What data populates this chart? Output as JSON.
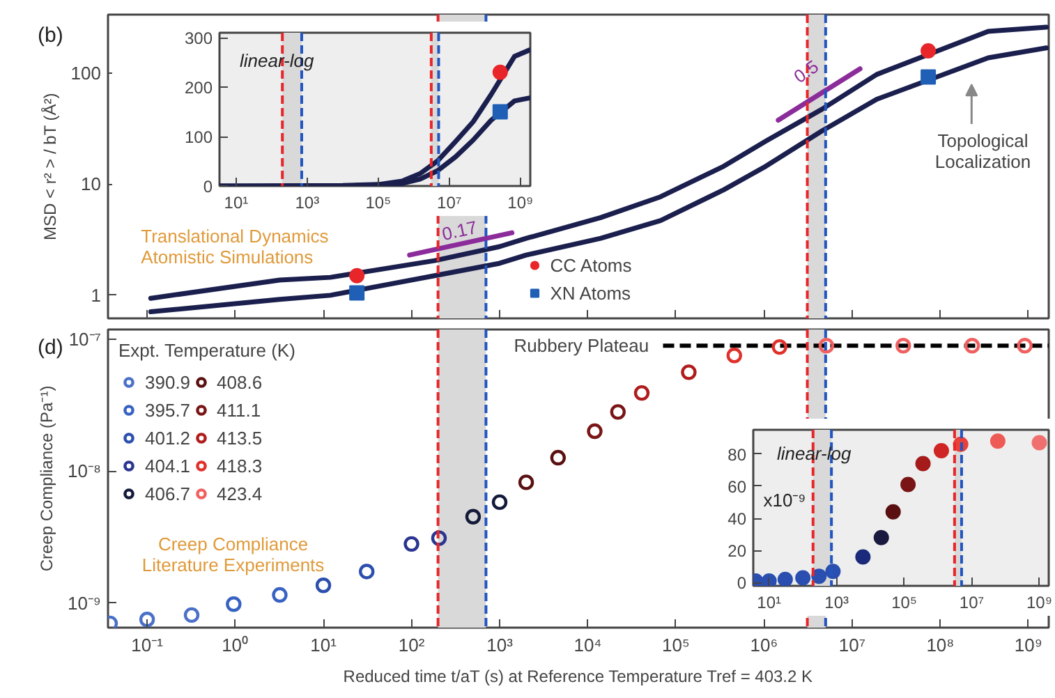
{
  "chart_data": [
    {
      "type": "line",
      "ylabel": "MSD < r² > / bT (Å²)",
      "xlim": [
        0.036,
        1700000000.0
      ],
      "ylim": [
        0.62,
        335
      ],
      "log": "xy",
      "grid": false,
      "tick_labels": "y",
      "legend": "bottom",
      "xticks": [
        {
          "value": 0.1,
          "label": null
        },
        {
          "value": 1,
          "label": null
        },
        {
          "value": 10,
          "label": null
        },
        {
          "value": 100,
          "label": null
        },
        {
          "value": 1000,
          "label": null
        },
        {
          "value": 10000.0,
          "label": null
        },
        {
          "value": 100000.0,
          "label": null
        },
        {
          "value": 1000000.0,
          "label": null
        },
        {
          "value": 10000000.0,
          "label": null
        },
        {
          "value": 100000000.0,
          "label": null
        },
        {
          "value": 1000000000.0,
          "label": null
        }
      ],
      "yticks": [
        1,
        10,
        100
      ],
      "series": [
        {
          "color": "#1b1f4e",
          "x": [
            0.11,
            3.2,
            12,
            183,
            1000,
            2000,
            14000.0,
            67000.0,
            350000.0,
            1050000.0,
            4500000.0,
            19000000.0,
            350000000.0,
            1600000000.0
          ],
          "values": [
            0.94,
            1.37,
            1.45,
            2.05,
            2.74,
            3.25,
            5.0,
            7.7,
            14.5,
            24.4,
            47,
            97,
            237,
            258
          ]
        },
        {
          "color": "#1b1f4e",
          "x": [
            0.11,
            3.2,
            12,
            183,
            1000,
            2000,
            14000.0,
            67000.0,
            350000.0,
            1050000.0,
            4500000.0,
            19000000.0,
            350000000.0,
            1600000000.0
          ],
          "values": [
            0.71,
            0.92,
            1.0,
            1.5,
            1.94,
            2.3,
            3.25,
            4.7,
            8.9,
            14.5,
            30,
            58,
            137,
            168
          ]
        },
        {
          "type": "scatter",
          "name": "CC Atoms",
          "marker": "circle",
          "color": "#e8262a",
          "x": [
            24,
            73000000.0
          ],
          "values": [
            1.5,
            158
          ]
        },
        {
          "type": "scatter",
          "name": "XN Atoms",
          "marker": "square",
          "color": "#1f5fb5",
          "x": [
            24,
            73000000.0
          ],
          "values": [
            1.05,
            92
          ]
        },
        {
          "color": "#8b2c9a",
          "x": [
            95,
            1380
          ],
          "values": [
            2.3,
            3.65
          ]
        },
        {
          "color": "#8b2c9a",
          "x": [
            1450000.0,
            12300000.0
          ],
          "values": [
            37.6,
            109
          ]
        }
      ],
      "ref_lines": [
        {
          "axis": "x",
          "value": 200,
          "color": "#e8262a",
          "line_style": "dashed"
        },
        {
          "axis": "x",
          "value": 700,
          "color": "#2255c0",
          "line_style": "dashed"
        },
        {
          "axis": "x",
          "value": 3100000.0,
          "color": "#e8262a",
          "line_style": "dashed"
        },
        {
          "axis": "x",
          "value": 5000000.0,
          "color": "#2255c0",
          "line_style": "dashed"
        }
      ],
      "bands": [
        {
          "axis": "x",
          "from": 200,
          "to": 700,
          "color": "#d9d9d9"
        },
        {
          "axis": "x",
          "from": 3100000.0,
          "to": 5000000.0,
          "color": "#d9d9d9"
        }
      ],
      "annotations": [
        "(b)",
        "Translational Dynamics\nAtomistic Simulations",
        {
          "text": "0.17",
          "x": 350,
          "y": 2.7
        },
        {
          "text": "0.5",
          "x": 3000000.0,
          "y": 73
        },
        "Topological\nLocalization"
      ]
    },
    {
      "type": "line",
      "xlim": [
        3.4,
        1900000000.0
      ],
      "ylim": [
        0,
        310
      ],
      "log": "x",
      "grid": false,
      "xticks": [
        {
          "value": 10,
          "label": "10¹"
        },
        {
          "value": 1000,
          "label": "10³"
        },
        {
          "value": 100000.0,
          "label": "10⁵"
        },
        {
          "value": 10000000.0,
          "label": "10⁷"
        },
        {
          "value": 1000000000.0,
          "label": "10⁹"
        }
      ],
      "yticks": [
        0,
        100,
        200,
        300
      ],
      "series": [
        {
          "color": "#1b1f4e",
          "x": [
            3.5,
            10,
            10000.0,
            100000.0,
            470000.0,
            1500000.0,
            4700000.0,
            15000000.0,
            47000000.0,
            150000000.0,
            680000000.0,
            1800000000.0
          ],
          "values": [
            0,
            0,
            1,
            3,
            10,
            25,
            51,
            90,
            130,
            185,
            262,
            275
          ]
        },
        {
          "color": "#1b1f4e",
          "x": [
            3.5,
            10,
            10000.0,
            100000.0,
            470000.0,
            1500000.0,
            4700000.0,
            15000000.0,
            47000000.0,
            150000000.0,
            680000000.0,
            1800000000.0
          ],
          "values": [
            0,
            0,
            0,
            2,
            5,
            14,
            31,
            59,
            93,
            133,
            172,
            178
          ]
        },
        {
          "type": "scatter",
          "marker": "circle",
          "color": "#e8262a",
          "x": [
            270000000.0
          ],
          "values": [
            230
          ]
        },
        {
          "type": "scatter",
          "marker": "square",
          "color": "#1f5fb5",
          "x": [
            270000000.0
          ],
          "values": [
            150
          ]
        }
      ],
      "ref_lines": [
        {
          "axis": "x",
          "value": 200,
          "color": "#e8262a",
          "line_style": "dashed"
        },
        {
          "axis": "x",
          "value": 700,
          "color": "#2255c0",
          "line_style": "dashed"
        },
        {
          "axis": "x",
          "value": 3100000.0,
          "color": "#e8262a",
          "line_style": "dashed"
        },
        {
          "axis": "x",
          "value": 5000000.0,
          "color": "#2255c0",
          "line_style": "dashed"
        }
      ],
      "bands": [
        {
          "axis": "x",
          "from": 200,
          "to": 700,
          "color": "#d9d9d9"
        },
        {
          "axis": "x",
          "from": 3100000.0,
          "to": 5000000.0,
          "color": "#d9d9d9"
        }
      ],
      "annotations": [
        "linear-log"
      ]
    },
    {
      "type": "scatter",
      "xlabel": "Reduced time t/aT (s) at Reference Temperature Tref = 403.2 K",
      "ylabel": "Creep Compliance (Pa⁻¹)",
      "xlim": [
        0.036,
        1700000000.0
      ],
      "ylim": [
        6.5e-10,
        1.18e-07
      ],
      "log": "xy",
      "grid": false,
      "legend": "top left",
      "legend_title": "Expt. Temperature (K)",
      "marker": "circle",
      "xticks": [
        {
          "value": 0.1,
          "label": "10⁻¹"
        },
        {
          "value": 1,
          "label": "10⁰"
        },
        {
          "value": 10,
          "label": "10¹"
        },
        {
          "value": 100,
          "label": "10²"
        },
        {
          "value": 1000,
          "label": "10³"
        },
        {
          "value": 10000.0,
          "label": "10⁴"
        },
        {
          "value": 100000.0,
          "label": "10⁵"
        },
        {
          "value": 1000000.0,
          "label": "10⁶"
        },
        {
          "value": 10000000.0,
          "label": "10⁷"
        },
        {
          "value": 100000000.0,
          "label": "10⁸"
        },
        {
          "value": 1000000000.0,
          "label": "10⁹"
        }
      ],
      "yticks": [
        {
          "value": 1e-09,
          "label": "10⁻⁹"
        },
        {
          "value": 1e-08,
          "label": "10⁻⁸"
        },
        {
          "value": 1e-07,
          "label": "10⁻⁷"
        }
      ],
      "series": [
        {
          "name": "390.9",
          "color": "#4a70c8",
          "x": [
            0.038,
            0.1,
            0.32
          ],
          "values": [
            7e-10,
            7.5e-10,
            8.1e-10
          ]
        },
        {
          "name": "395.7",
          "color": "#3862c2",
          "x": [
            0.96,
            3.2
          ],
          "values": [
            9.8e-10,
            1.15e-09
          ]
        },
        {
          "name": "401.2",
          "color": "#2c4fae",
          "x": [
            10,
            31
          ],
          "values": [
            1.36e-09,
            1.73e-09
          ]
        },
        {
          "name": "404.1",
          "color": "#2a3590",
          "x": [
            100,
            205
          ],
          "values": [
            2.8e-09,
            3.1e-09
          ]
        },
        {
          "name": "406.7",
          "color": "#141a3a",
          "x": [
            500,
            1000
          ],
          "values": [
            4.5e-09,
            5.8e-09
          ]
        },
        {
          "name": "408.6",
          "color": "#5a1010",
          "x": [
            2000,
            4600
          ],
          "values": [
            8.2e-09,
            1.26e-08
          ]
        },
        {
          "name": "411.1",
          "color": "#7a1515",
          "x": [
            12000.0,
            22000.0
          ],
          "values": [
            2e-08,
            2.8e-08
          ]
        },
        {
          "name": "413.5",
          "color": "#b01c1c",
          "x": [
            41000.0,
            140000.0
          ],
          "values": [
            3.9e-08,
            5.6e-08
          ]
        },
        {
          "name": "418.3",
          "color": "#e0302a",
          "x": [
            460000.0,
            1500000.0
          ],
          "values": [
            7.5e-08,
            8.7e-08
          ]
        },
        {
          "name": "423.4",
          "color": "#f06060",
          "x": [
            5100000.0,
            38000000.0,
            230000000.0,
            910000000.0
          ],
          "values": [
            8.9e-08,
            8.9e-08,
            8.9e-08,
            8.9e-08
          ]
        }
      ],
      "ref_lines": [
        {
          "axis": "x",
          "value": 200,
          "color": "#e8262a",
          "line_style": "dashed"
        },
        {
          "axis": "x",
          "value": 700,
          "color": "#2255c0",
          "line_style": "dashed"
        },
        {
          "axis": "x",
          "value": 3100000.0,
          "color": "#e8262a",
          "line_style": "dashed"
        },
        {
          "axis": "x",
          "value": 5000000.0,
          "color": "#2255c0",
          "line_style": "dashed"
        },
        {
          "axis": "y",
          "value": 8.9e-08,
          "label": "Rubbery Plateau",
          "color": "#000000",
          "line_style": "dashed"
        }
      ],
      "bands": [
        {
          "axis": "x",
          "from": 200,
          "to": 700,
          "color": "#d9d9d9"
        },
        {
          "axis": "x",
          "from": 3100000.0,
          "to": 5000000.0,
          "color": "#d9d9d9"
        }
      ],
      "annotations": [
        "(d)",
        "Creep Compliance\nLiterature Experiments"
      ]
    },
    {
      "type": "scatter",
      "xlim": [
        3.4,
        1900000000.0
      ],
      "ylim": [
        -2,
        95
      ],
      "log": "x",
      "grid": false,
      "marker": "circle",
      "xticks": [
        {
          "value": 10,
          "label": "10¹"
        },
        {
          "value": 1000,
          "label": "10³"
        },
        {
          "value": 100000.0,
          "label": "10⁵"
        },
        {
          "value": 10000000.0,
          "label": "10⁷"
        },
        {
          "value": 1000000000.0,
          "label": "10⁹"
        }
      ],
      "yticks": [
        0,
        20,
        40,
        60,
        80
      ],
      "series": [
        {
          "colors": [
            "#2a4fb0",
            "#2a4fb0",
            "#2a4fb0",
            "#2a4fb0",
            "#2a4fb0",
            "#2a4fb0",
            "#1b2a7a",
            "#1a1a40",
            "#5a1010",
            "#7a1515",
            "#a51a1a",
            "#d02525",
            "#e8403a",
            "#ee5a55",
            "#f07070"
          ],
          "x": [
            4,
            10,
            30,
            100,
            300,
            780,
            6000,
            21000.0,
            47000.0,
            130000.0,
            360000.0,
            1260000.0,
            4700000.0,
            59000000.0,
            1000000000.0
          ],
          "values": [
            1,
            1,
            2,
            3,
            4,
            7,
            16,
            28,
            44,
            61,
            74,
            82,
            86,
            88,
            87
          ]
        }
      ],
      "ref_lines": [
        {
          "axis": "x",
          "value": 200,
          "color": "#e8262a",
          "line_style": "dashed"
        },
        {
          "axis": "x",
          "value": 700,
          "color": "#2255c0",
          "line_style": "dashed"
        },
        {
          "axis": "x",
          "value": 3100000.0,
          "color": "#e8262a",
          "line_style": "dashed"
        },
        {
          "axis": "x",
          "value": 5000000.0,
          "color": "#2255c0",
          "line_style": "dashed"
        }
      ],
      "bands": [
        {
          "axis": "x",
          "from": 200,
          "to": 700,
          "color": "#d9d9d9"
        },
        {
          "axis": "x",
          "from": 3100000.0,
          "to": 5000000.0,
          "color": "#d9d9d9"
        }
      ],
      "annotations": [
        "linear-log",
        "x10⁻⁹"
      ]
    }
  ]
}
